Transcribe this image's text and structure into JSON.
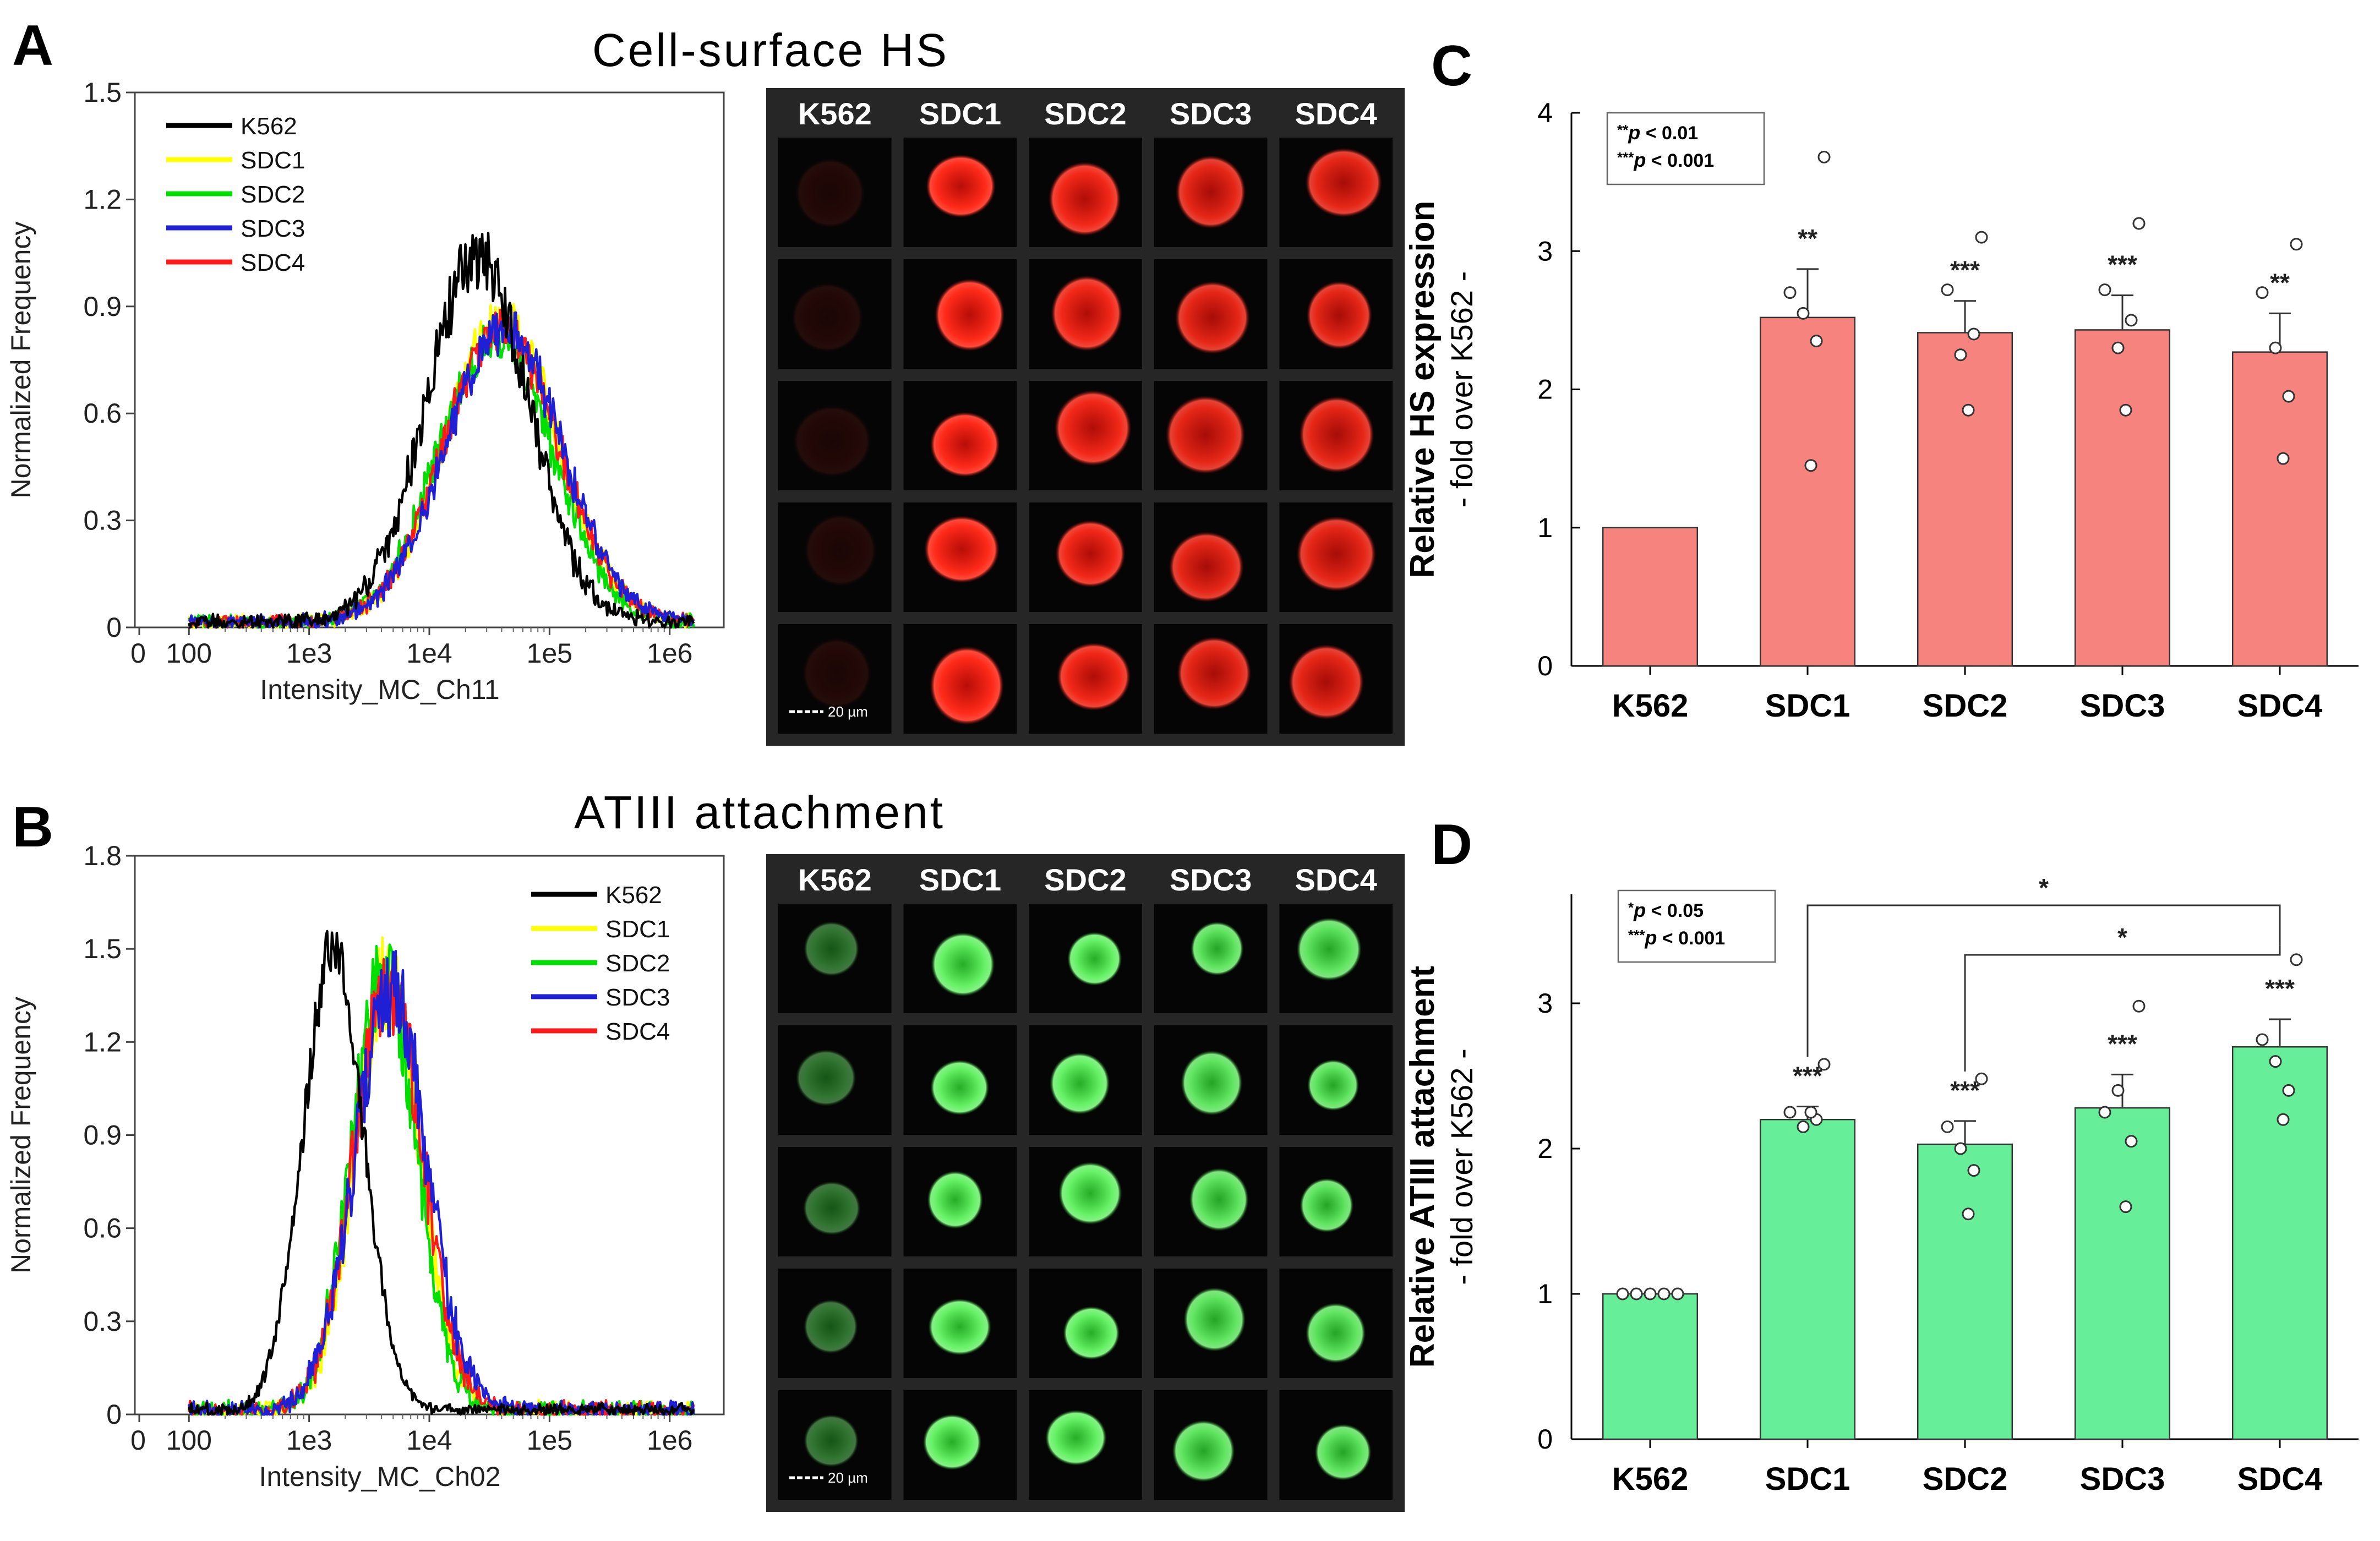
{
  "panels": {
    "A": {
      "letter": "A",
      "title": "Cell-surface HS",
      "hist": {
        "type": "line",
        "ylabel": "Normalized Frequency",
        "xlabel": "Intensity_MC_Ch11",
        "yticks": [
          "0",
          "0.3",
          "0.6",
          "0.9",
          "1.2",
          "1.5"
        ],
        "ylim": [
          0,
          1.5
        ],
        "xticks": [
          "0",
          "100",
          "1e3",
          "1e4",
          "1e5",
          "1e6"
        ],
        "xscale": "log",
        "legend_position": "top-left",
        "legend": [
          {
            "name": "K562",
            "color": "#000000"
          },
          {
            "name": "SDC1",
            "color": "#ffff00"
          },
          {
            "name": "SDC2",
            "color": "#00e000"
          },
          {
            "name": "SDC3",
            "color": "#1f1fd6"
          },
          {
            "name": "SDC4",
            "color": "#ff1a1a"
          }
        ],
        "series_params": [
          {
            "name": "SDC1",
            "mu": 4.6,
            "sigma": 0.47,
            "peak": 0.85,
            "noise": 0.14
          },
          {
            "name": "SDC2",
            "mu": 4.55,
            "sigma": 0.47,
            "peak": 0.8,
            "noise": 0.14
          },
          {
            "name": "SDC4",
            "mu": 4.6,
            "sigma": 0.48,
            "peak": 0.82,
            "noise": 0.14
          },
          {
            "name": "SDC3",
            "mu": 4.62,
            "sigma": 0.48,
            "peak": 0.82,
            "noise": 0.14
          },
          {
            "name": "K562",
            "mu": 4.4,
            "sigma": 0.43,
            "peak": 1.02,
            "noise": 0.16
          }
        ]
      },
      "gallery": {
        "headers": [
          "K562",
          "SDC1",
          "SDC2",
          "SDC3",
          "SDC4"
        ],
        "scale_label": "20 µm",
        "color": "red",
        "intensity": [
          0.12,
          1.0,
          0.95,
          0.9,
          0.9
        ]
      }
    },
    "B": {
      "letter": "B",
      "title": "ATIII attachment",
      "hist": {
        "type": "line",
        "ylabel": "Normalized Frequency",
        "xlabel": "Intensity_MC_Ch02",
        "yticks": [
          "0",
          "0.3",
          "0.6",
          "0.9",
          "1.2",
          "1.5",
          "1.8"
        ],
        "ylim": [
          0,
          1.8
        ],
        "xticks": [
          "0",
          "100",
          "1e3",
          "1e4",
          "1e5",
          "1e6"
        ],
        "xscale": "log",
        "legend_position": "top-right",
        "legend": [
          {
            "name": "K562",
            "color": "#000000"
          },
          {
            "name": "SDC1",
            "color": "#ffff00"
          },
          {
            "name": "SDC2",
            "color": "#00e000"
          },
          {
            "name": "SDC3",
            "color": "#1f1fd6"
          },
          {
            "name": "SDC4",
            "color": "#ff1a1a"
          }
        ],
        "series_params": [
          {
            "name": "SDC1",
            "mu": 3.65,
            "sigma": 0.27,
            "peak": 1.38,
            "noise": 0.2
          },
          {
            "name": "SDC2",
            "mu": 3.62,
            "sigma": 0.27,
            "peak": 1.4,
            "noise": 0.2
          },
          {
            "name": "SDC4",
            "mu": 3.66,
            "sigma": 0.29,
            "peak": 1.35,
            "noise": 0.2
          },
          {
            "name": "SDC3",
            "mu": 3.68,
            "sigma": 0.3,
            "peak": 1.35,
            "noise": 0.2
          },
          {
            "name": "K562",
            "mu": 3.2,
            "sigma": 0.25,
            "peak": 1.48,
            "noise": 0.1
          }
        ]
      },
      "gallery": {
        "headers": [
          "K562",
          "SDC1",
          "SDC2",
          "SDC3",
          "SDC4"
        ],
        "scale_label": "20 µm",
        "color": "green",
        "intensity": [
          0.45,
          0.95,
          0.95,
          0.9,
          0.9
        ]
      }
    },
    "C": {
      "letter": "C",
      "chart_data": {
        "type": "bar",
        "categories": [
          "K562",
          "SDC1",
          "SDC2",
          "SDC3",
          "SDC4"
        ],
        "values": [
          1.0,
          2.52,
          2.41,
          2.43,
          2.27
        ],
        "errors": [
          0,
          0.35,
          0.23,
          0.25,
          0.28
        ],
        "points": [
          [],
          [
            2.7,
            2.55,
            2.35,
            1.45,
            3.68
          ],
          [
            2.72,
            2.25,
            2.4,
            1.85,
            3.1
          ],
          [
            2.72,
            2.3,
            2.5,
            1.85,
            3.2
          ],
          [
            2.7,
            2.3,
            1.95,
            1.5,
            3.05
          ]
        ],
        "significance": [
          "",
          "**",
          "***",
          "***",
          "**"
        ],
        "ylabel": "Relative HS expression",
        "ylabel2": "- fold over K562 -",
        "yticks": [
          "0",
          "1",
          "2",
          "3",
          "4"
        ],
        "ylim": [
          0,
          4
        ],
        "bar_color": "#f7837e",
        "legend_lines": [
          [
            "**",
            "p",
            " < 0.01"
          ],
          [
            "***",
            "p",
            " < 0.001"
          ]
        ]
      }
    },
    "D": {
      "letter": "D",
      "chart_data": {
        "type": "bar",
        "categories": [
          "K562",
          "SDC1",
          "SDC2",
          "SDC3",
          "SDC4"
        ],
        "values": [
          1.0,
          2.2,
          2.03,
          2.28,
          2.7
        ],
        "errors": [
          0,
          0.09,
          0.16,
          0.23,
          0.19
        ],
        "points": [
          [
            1.0,
            1.0,
            1.0,
            1.0,
            1.0
          ],
          [
            2.25,
            2.15,
            2.2,
            2.25,
            2.58
          ],
          [
            2.15,
            2.0,
            1.85,
            1.55,
            2.48
          ],
          [
            2.25,
            2.4,
            2.05,
            1.6,
            2.98
          ],
          [
            2.75,
            2.6,
            2.4,
            2.2,
            3.3
          ]
        ],
        "significance": [
          "",
          "***",
          "***",
          "***",
          "***"
        ],
        "brackets": [
          {
            "from": "SDC1",
            "to": "SDC4",
            "label": "*"
          },
          {
            "from": "SDC2",
            "to": "SDC4",
            "label": "*"
          }
        ],
        "ylabel": "Relative ATIII attachment",
        "ylabel2": "- fold over K562 -",
        "yticks": [
          "0",
          "1",
          "2",
          "3"
        ],
        "ylim": [
          0,
          3.75
        ],
        "bar_color": "#66ee99",
        "legend_lines": [
          [
            "*",
            "p",
            " < 0.05"
          ],
          [
            "***",
            "p",
            " < 0.001"
          ]
        ]
      }
    }
  }
}
